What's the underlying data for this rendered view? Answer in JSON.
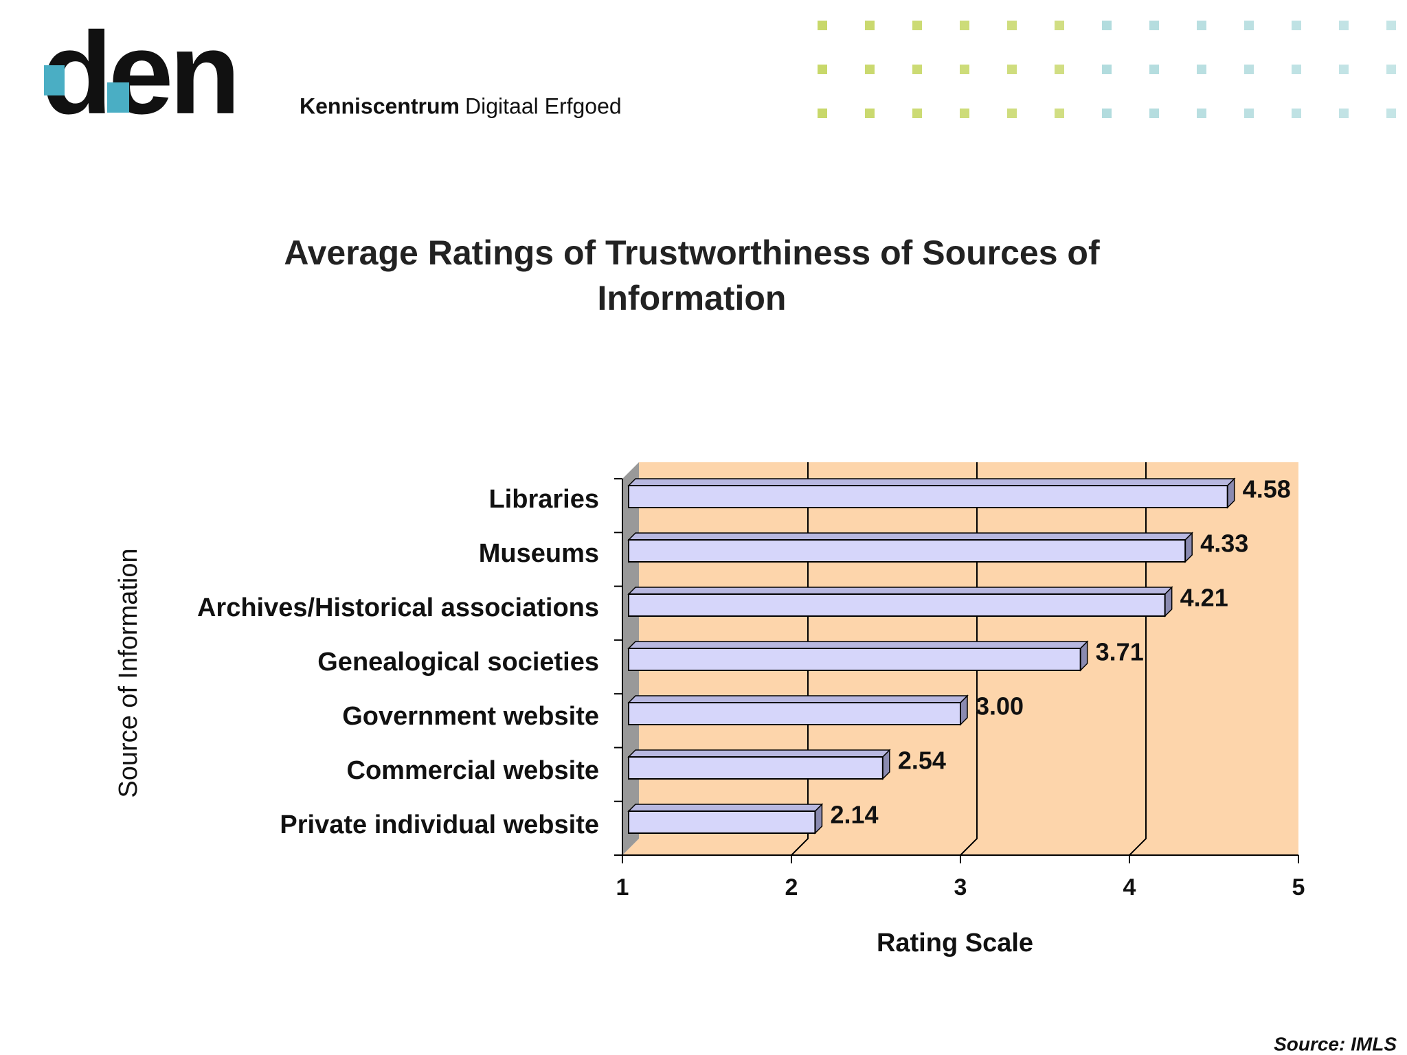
{
  "header": {
    "logo": "den",
    "tagline_bold": "Kenniscentrum",
    "tagline": "Digitaal Erfgoed"
  },
  "chart_data": {
    "type": "bar",
    "orientation": "horizontal",
    "title": "Average Ratings of Trustworthiness of Sources of Information",
    "x_label": "Rating Scale",
    "y_label": "Source of Information",
    "categories": [
      "Libraries",
      "Museums",
      "Archives/Historical associations",
      "Genealogical societies",
      "Government website",
      "Commercial website",
      "Private individual website"
    ],
    "values": [
      4.58,
      4.33,
      4.21,
      3.71,
      3.0,
      2.54,
      2.14
    ],
    "value_labels": [
      "4.58",
      "4.33",
      "4.21",
      "3.71",
      "3.00",
      "2.54",
      "2.14"
    ],
    "color": "#d6d6fa",
    "plot_background": "#fdd5ab",
    "xlim": [
      1,
      5
    ],
    "xticks": [
      1,
      2,
      3,
      4,
      5
    ],
    "grid": true
  },
  "footer": {
    "source": "Source: IMLS"
  }
}
